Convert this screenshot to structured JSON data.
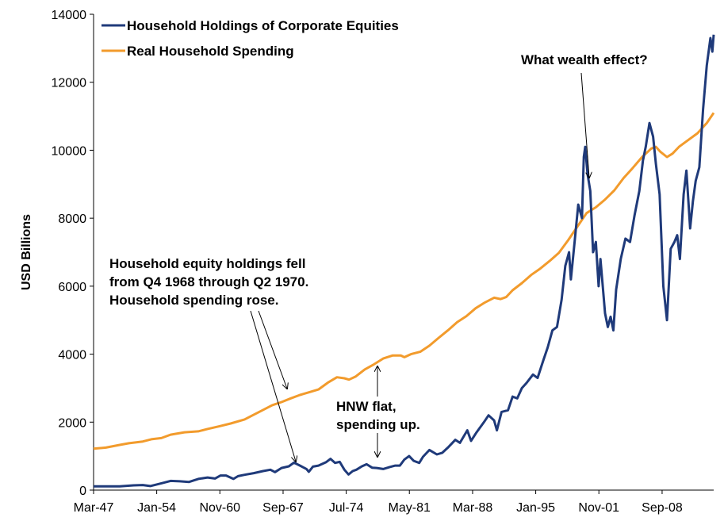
{
  "chart_data": {
    "type": "line",
    "title": "",
    "xlabel": "",
    "ylabel": "USD Billions",
    "ylim": [
      0,
      14000
    ],
    "yticks": [
      0,
      2000,
      4000,
      6000,
      8000,
      10000,
      12000,
      14000
    ],
    "xlim": [
      1947.17,
      2014.25
    ],
    "xtick_labels": [
      {
        "label": "Mar-47",
        "t": 1947.17
      },
      {
        "label": "Jan-54",
        "t": 1954.0
      },
      {
        "label": "Nov-60",
        "t": 1960.83
      },
      {
        "label": "Sep-67",
        "t": 1967.67
      },
      {
        "label": "Jul-74",
        "t": 1974.5
      },
      {
        "label": "May-81",
        "t": 1981.33
      },
      {
        "label": "Mar-88",
        "t": 1988.17
      },
      {
        "label": "Jan-95",
        "t": 1995.0
      },
      {
        "label": "Nov-01",
        "t": 2001.83
      },
      {
        "label": "Sep-08",
        "t": 2008.67
      }
    ],
    "grid": false,
    "legend_position": "top-left",
    "series": [
      {
        "name": "Household Holdings of Corporate Equities",
        "color": "#1f3a7a",
        "points": [
          [
            1947.17,
            110
          ],
          [
            1950,
            110
          ],
          [
            1951.5,
            140
          ],
          [
            1952.5,
            150
          ],
          [
            1953.3,
            120
          ],
          [
            1954.5,
            200
          ],
          [
            1955.5,
            270
          ],
          [
            1956.5,
            260
          ],
          [
            1957.5,
            240
          ],
          [
            1958.5,
            330
          ],
          [
            1959.5,
            370
          ],
          [
            1960.3,
            340
          ],
          [
            1960.9,
            430
          ],
          [
            1961.5,
            430
          ],
          [
            1962.3,
            330
          ],
          [
            1962.8,
            410
          ],
          [
            1963.5,
            450
          ],
          [
            1964.5,
            500
          ],
          [
            1965.5,
            560
          ],
          [
            1966.3,
            600
          ],
          [
            1966.8,
            530
          ],
          [
            1967.5,
            650
          ],
          [
            1968.3,
            700
          ],
          [
            1968.85,
            810
          ],
          [
            1969.5,
            720
          ],
          [
            1970.2,
            620
          ],
          [
            1970.45,
            540
          ],
          [
            1970.9,
            690
          ],
          [
            1971.5,
            720
          ],
          [
            1972.3,
            820
          ],
          [
            1972.8,
            920
          ],
          [
            1973.3,
            800
          ],
          [
            1973.8,
            830
          ],
          [
            1974.3,
            600
          ],
          [
            1974.75,
            460
          ],
          [
            1975.2,
            560
          ],
          [
            1975.6,
            600
          ],
          [
            1976.2,
            700
          ],
          [
            1976.7,
            760
          ],
          [
            1977.3,
            660
          ],
          [
            1977.8,
            650
          ],
          [
            1978.5,
            620
          ],
          [
            1979.2,
            680
          ],
          [
            1979.8,
            720
          ],
          [
            1980.3,
            720
          ],
          [
            1980.8,
            900
          ],
          [
            1981.3,
            1000
          ],
          [
            1981.8,
            860
          ],
          [
            1982.4,
            800
          ],
          [
            1982.8,
            980
          ],
          [
            1983.5,
            1180
          ],
          [
            1984.3,
            1050
          ],
          [
            1984.9,
            1100
          ],
          [
            1985.5,
            1250
          ],
          [
            1986.3,
            1480
          ],
          [
            1986.8,
            1390
          ],
          [
            1987.6,
            1760
          ],
          [
            1988.0,
            1450
          ],
          [
            1988.6,
            1700
          ],
          [
            1989.4,
            2000
          ],
          [
            1989.9,
            2200
          ],
          [
            1990.5,
            2050
          ],
          [
            1990.8,
            1760
          ],
          [
            1991.3,
            2300
          ],
          [
            1992.0,
            2350
          ],
          [
            1992.5,
            2750
          ],
          [
            1993.0,
            2700
          ],
          [
            1993.5,
            3000
          ],
          [
            1994.0,
            3150
          ],
          [
            1994.7,
            3400
          ],
          [
            1995.2,
            3300
          ],
          [
            1995.8,
            3800
          ],
          [
            1996.3,
            4200
          ],
          [
            1996.8,
            4700
          ],
          [
            1997.3,
            4800
          ],
          [
            1997.8,
            5600
          ],
          [
            1998.2,
            6600
          ],
          [
            1998.6,
            7000
          ],
          [
            1998.8,
            6200
          ],
          [
            1999.2,
            7300
          ],
          [
            1999.6,
            8400
          ],
          [
            2000.0,
            8000
          ],
          [
            2000.2,
            9800
          ],
          [
            2000.35,
            10100
          ],
          [
            2000.6,
            9300
          ],
          [
            2000.9,
            8800
          ],
          [
            2001.2,
            7000
          ],
          [
            2001.5,
            7300
          ],
          [
            2001.8,
            6000
          ],
          [
            2002.0,
            6800
          ],
          [
            2002.5,
            5200
          ],
          [
            2002.8,
            4800
          ],
          [
            2003.1,
            5100
          ],
          [
            2003.4,
            4700
          ],
          [
            2003.7,
            5900
          ],
          [
            2004.2,
            6800
          ],
          [
            2004.7,
            7400
          ],
          [
            2005.2,
            7300
          ],
          [
            2005.7,
            8100
          ],
          [
            2006.2,
            8800
          ],
          [
            2006.6,
            9700
          ],
          [
            2006.9,
            10100
          ],
          [
            2007.3,
            10800
          ],
          [
            2007.7,
            10400
          ],
          [
            2008.0,
            9600
          ],
          [
            2008.4,
            8700
          ],
          [
            2008.8,
            6000
          ],
          [
            2009.2,
            5000
          ],
          [
            2009.6,
            7100
          ],
          [
            2010.0,
            7300
          ],
          [
            2010.3,
            7500
          ],
          [
            2010.6,
            6800
          ],
          [
            2011.0,
            8700
          ],
          [
            2011.3,
            9400
          ],
          [
            2011.7,
            7700
          ],
          [
            2012.0,
            8500
          ],
          [
            2012.3,
            9100
          ],
          [
            2012.7,
            9500
          ],
          [
            2013.1,
            11200
          ],
          [
            2013.5,
            12500
          ],
          [
            2013.9,
            13300
          ],
          [
            2014.1,
            12900
          ],
          [
            2014.25,
            13400
          ]
        ]
      },
      {
        "name": "Real Household Spending",
        "color": "#f29b2c",
        "points": [
          [
            1947.17,
            1220
          ],
          [
            1948.5,
            1250
          ],
          [
            1950.0,
            1330
          ],
          [
            1951.0,
            1380
          ],
          [
            1952.5,
            1430
          ],
          [
            1953.5,
            1500
          ],
          [
            1954.5,
            1530
          ],
          [
            1955.5,
            1630
          ],
          [
            1957.0,
            1700
          ],
          [
            1958.5,
            1730
          ],
          [
            1959.5,
            1800
          ],
          [
            1960.8,
            1880
          ],
          [
            1962.0,
            1960
          ],
          [
            1963.5,
            2080
          ],
          [
            1964.5,
            2220
          ],
          [
            1965.5,
            2360
          ],
          [
            1966.5,
            2500
          ],
          [
            1967.5,
            2590
          ],
          [
            1968.5,
            2700
          ],
          [
            1969.5,
            2800
          ],
          [
            1970.5,
            2880
          ],
          [
            1971.5,
            2960
          ],
          [
            1972.5,
            3160
          ],
          [
            1973.5,
            3320
          ],
          [
            1974.3,
            3290
          ],
          [
            1974.8,
            3250
          ],
          [
            1975.5,
            3340
          ],
          [
            1976.5,
            3550
          ],
          [
            1977.5,
            3700
          ],
          [
            1978.5,
            3870
          ],
          [
            1979.5,
            3960
          ],
          [
            1980.4,
            3960
          ],
          [
            1980.8,
            3910
          ],
          [
            1981.5,
            4000
          ],
          [
            1982.5,
            4070
          ],
          [
            1983.5,
            4250
          ],
          [
            1984.5,
            4480
          ],
          [
            1985.5,
            4700
          ],
          [
            1986.5,
            4940
          ],
          [
            1987.5,
            5120
          ],
          [
            1988.5,
            5350
          ],
          [
            1989.5,
            5520
          ],
          [
            1990.5,
            5660
          ],
          [
            1991.2,
            5620
          ],
          [
            1991.8,
            5680
          ],
          [
            1992.5,
            5880
          ],
          [
            1993.5,
            6090
          ],
          [
            1994.5,
            6330
          ],
          [
            1995.5,
            6520
          ],
          [
            1996.5,
            6740
          ],
          [
            1997.5,
            6980
          ],
          [
            1998.5,
            7350
          ],
          [
            1999.5,
            7750
          ],
          [
            2000.5,
            8150
          ],
          [
            2001.5,
            8320
          ],
          [
            2002.5,
            8550
          ],
          [
            2003.5,
            8820
          ],
          [
            2004.5,
            9180
          ],
          [
            2005.5,
            9480
          ],
          [
            2006.5,
            9800
          ],
          [
            2007.5,
            10050
          ],
          [
            2008.0,
            10100
          ],
          [
            2008.5,
            9950
          ],
          [
            2009.2,
            9800
          ],
          [
            2009.8,
            9900
          ],
          [
            2010.5,
            10100
          ],
          [
            2011.5,
            10300
          ],
          [
            2012.5,
            10500
          ],
          [
            2013.5,
            10800
          ],
          [
            2014.25,
            11100
          ]
        ]
      }
    ],
    "annotations": [
      {
        "lines": [
          "What wealth effect?"
        ],
        "target": [
          2001.8,
          9000
        ]
      },
      {
        "lines": [
          "Household equity holdings fell",
          "from Q4 1968 through Q2 1970.",
          "Household spending rose."
        ],
        "targets": [
          [
            1969.0,
            850
          ],
          [
            1968.6,
            2870
          ]
        ]
      },
      {
        "lines": [
          "HNW flat,",
          "spending up."
        ],
        "targets": [
          [
            1978.3,
            3700
          ],
          [
            1978.3,
            1000
          ]
        ]
      }
    ]
  }
}
